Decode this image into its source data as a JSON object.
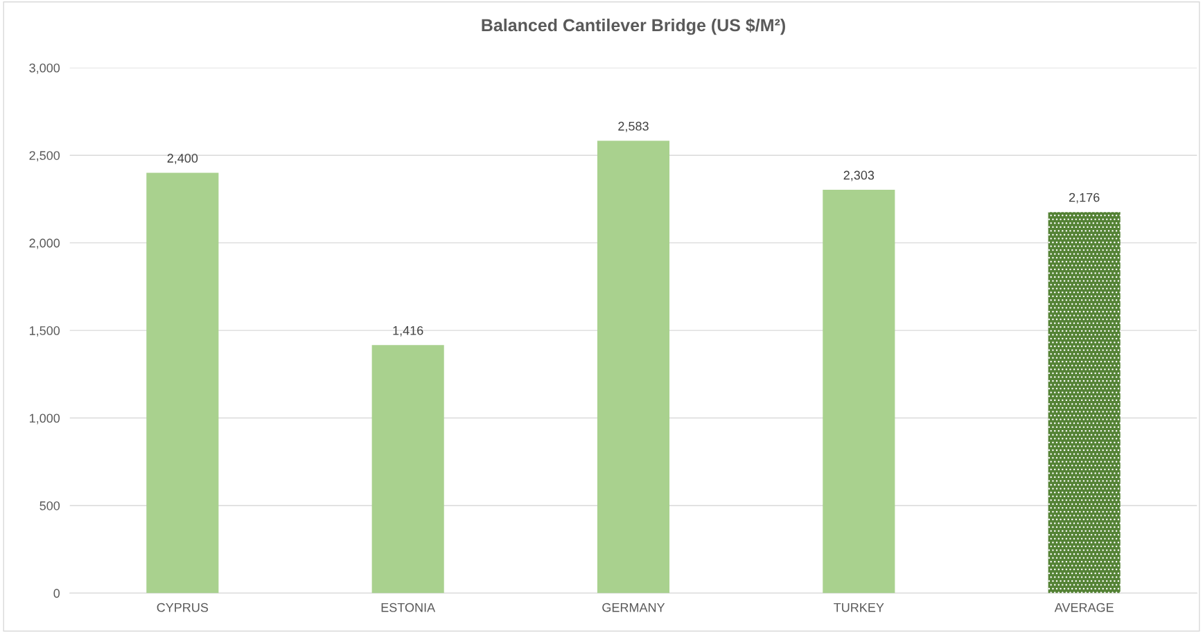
{
  "chart_data": {
    "type": "bar",
    "title": "Balanced Cantilever Bridge (US $/M²)",
    "categories": [
      "CYPRUS",
      "ESTONIA",
      "GERMANY",
      "TURKEY",
      "AVERAGE"
    ],
    "values": [
      2400,
      1416,
      2583,
      2303,
      2176
    ],
    "colors": [
      "#a9d18e",
      "#a9d18e",
      "#a9d18e",
      "#a9d18e",
      "#548235"
    ],
    "ylim": [
      0,
      3000
    ],
    "yticks": [
      {
        "value": 0,
        "label": "0"
      },
      {
        "value": 500,
        "label": "500"
      },
      {
        "value": 1000,
        "label": "1,000"
      },
      {
        "value": 1500,
        "label": "1,500"
      },
      {
        "value": 2000,
        "label": "2,000"
      },
      {
        "value": 2500,
        "label": "2,500"
      },
      {
        "value": 3000,
        "label": "3,000"
      }
    ],
    "value_labels": [
      "2,400",
      "1,416",
      "2,583",
      "2,303",
      "2,176"
    ],
    "grid": "y"
  }
}
